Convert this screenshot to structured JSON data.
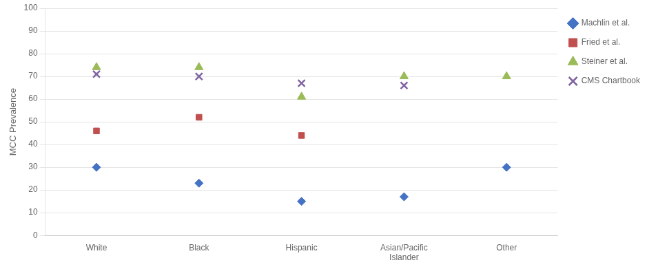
{
  "chart_data": {
    "type": "scatter",
    "categories": [
      "White",
      "Black",
      "Hispanic",
      "Asian/Pacific\nIslander",
      "Other"
    ],
    "series": [
      {
        "name": "Machlin et al.",
        "color": "#4472C4",
        "marker": "diamond",
        "values": [
          30,
          23,
          15,
          17,
          30
        ]
      },
      {
        "name": "Fried et al.",
        "color": "#C0504D",
        "marker": "square",
        "values": [
          46,
          52,
          44,
          null,
          null
        ]
      },
      {
        "name": "Steiner et al.",
        "color": "#9BBB59",
        "marker": "triangle",
        "values": [
          74,
          74,
          61,
          70,
          70
        ]
      },
      {
        "name": "CMS Chartbook",
        "color": "#8064A2",
        "marker": "x",
        "values": [
          71,
          70,
          67,
          66,
          null
        ]
      }
    ],
    "ylabel": "MCC Prevalence",
    "ylim": [
      0,
      100
    ],
    "yticks": [
      0,
      10,
      20,
      30,
      40,
      50,
      60,
      70,
      80,
      90,
      100
    ],
    "grid": true,
    "legend": "right"
  }
}
